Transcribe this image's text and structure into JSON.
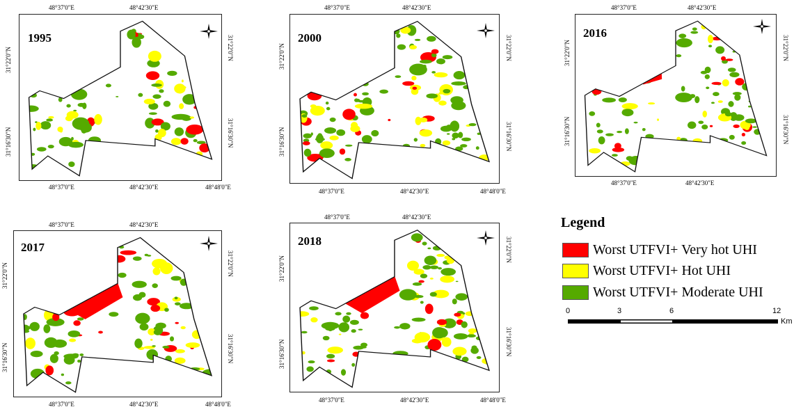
{
  "colors": {
    "very_hot": "#ff0000",
    "hot": "#ffff00",
    "moderate": "#55aa00",
    "outline": "#111111"
  },
  "panels": [
    {
      "year": "1995",
      "top_ticks": [
        "48°37'0\"E",
        "48°42'30\"E"
      ],
      "bottom_ticks": [
        "48°37'0\"E",
        "48°42'30\"E",
        "48°48'0\"E"
      ],
      "left_ticks": [
        "31°22'0\"N",
        "31°16'30\"N"
      ],
      "right_ticks": [
        "31°22'0\"N",
        "31°16'30\"N"
      ]
    },
    {
      "year": "2000",
      "top_ticks": [
        "48°37'0\"E",
        "48°42'30\"E"
      ],
      "bottom_ticks": [
        "48°37'0\"E",
        "48°42'30\"E",
        "48°48'0\"E"
      ],
      "left_ticks": [
        "31°22'0\"N",
        "31°16'30\"N"
      ],
      "right_ticks": [
        "31°22'0\"N",
        "31°16'30\"N"
      ]
    },
    {
      "year": "2016",
      "top_ticks": [
        "48°37'0\"E",
        "48°42'30\"E"
      ],
      "bottom_ticks": [
        "48°37'0\"E",
        "48°42'30\"E"
      ],
      "left_ticks": [
        "31°22'0\"N",
        "31°16'30\"N"
      ],
      "right_ticks": [
        "31°22'0\"N",
        "31°16'30\"N"
      ]
    },
    {
      "year": "2017",
      "top_ticks": [
        "48°37'0\"E",
        "48°42'30\"E"
      ],
      "bottom_ticks": [
        "48°37'0\"E",
        "48°42'30\"E",
        "48°48'0\"E"
      ],
      "left_ticks": [
        "31°22'0\"N",
        "31°16'30\"N"
      ],
      "right_ticks": [
        "31°22'0\"N",
        "31°16'30\"N"
      ]
    },
    {
      "year": "2018",
      "top_ticks": [
        "48°37'0\"E",
        "48°42'30\"E"
      ],
      "bottom_ticks": [
        "48°37'0\"E",
        "48°42'30\"E",
        "48°48'0\"E"
      ],
      "left_ticks": [
        "31°22'0\"N",
        "31°16'30\"N"
      ],
      "right_ticks": [
        "31°22'0\"N",
        "31°16'30\"N"
      ]
    }
  ],
  "legend": {
    "title": "Legend",
    "items": [
      {
        "label": "Worst UTFVI+ Very hot UHI",
        "color": "#ff0000"
      },
      {
        "label": "Worst UTFVI+ Hot UHI",
        "color": "#ffff00"
      },
      {
        "label": "Worst UTFVI+ Moderate UHI",
        "color": "#55aa00"
      }
    ]
  },
  "scale_bar": {
    "labels": [
      "0",
      "3",
      "6",
      "12"
    ],
    "unit": "Km"
  },
  "icons": {
    "compass": "north-arrow-icon"
  }
}
